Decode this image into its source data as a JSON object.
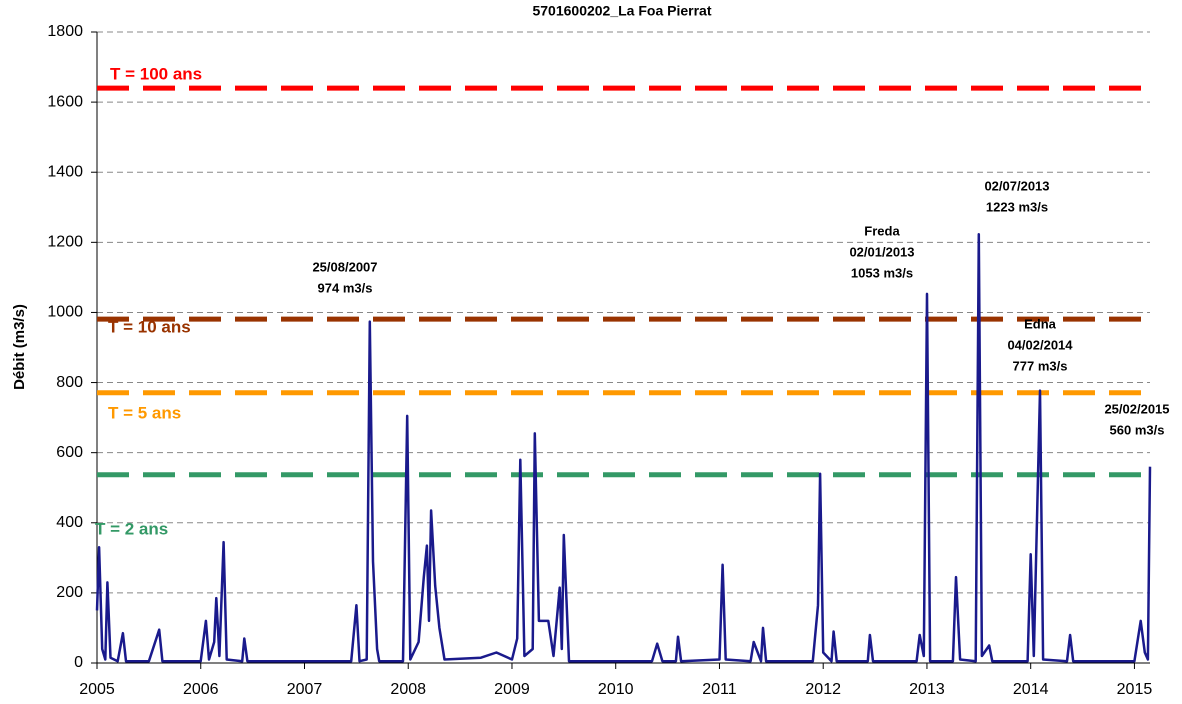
{
  "chart_data": {
    "type": "line",
    "title": "5701600202_La Foa Pierrat",
    "y_label": "Débit (m3/s)",
    "color": "#1a1a8c",
    "x": [
      2005.0,
      2005.02,
      2005.05,
      2005.08,
      2005.1,
      2005.13,
      2005.2,
      2005.25,
      2005.28,
      2005.5,
      2005.6,
      2005.63,
      2006.0,
      2006.05,
      2006.08,
      2006.13,
      2006.15,
      2006.18,
      2006.22,
      2006.25,
      2006.4,
      2006.42,
      2006.45,
      2007.45,
      2007.5,
      2007.53,
      2007.6,
      2007.63,
      2007.66,
      2007.7,
      2007.72,
      2007.95,
      2007.99,
      2008.02,
      2008.1,
      2008.15,
      2008.18,
      2008.2,
      2008.22,
      2008.26,
      2008.3,
      2008.35,
      2008.7,
      2008.85,
      2009.0,
      2009.05,
      2009.08,
      2009.12,
      2009.2,
      2009.22,
      2009.26,
      2009.35,
      2009.4,
      2009.46,
      2009.48,
      2009.5,
      2009.55,
      2010.35,
      2010.4,
      2010.45,
      2010.58,
      2010.6,
      2010.63,
      2011.0,
      2011.03,
      2011.06,
      2011.3,
      2011.33,
      2011.4,
      2011.42,
      2011.45,
      2011.9,
      2011.95,
      2011.97,
      2012.0,
      2012.08,
      2012.1,
      2012.13,
      2012.43,
      2012.45,
      2012.48,
      2012.9,
      2012.93,
      2012.97,
      2013.0,
      2013.03,
      2013.25,
      2013.28,
      2013.32,
      2013.47,
      2013.5,
      2013.53,
      2013.6,
      2013.63,
      2013.97,
      2014.0,
      2014.03,
      2014.09,
      2014.12,
      2014.35,
      2014.38,
      2014.41,
      2015.0,
      2015.06,
      2015.1,
      2015.13,
      2015.15
    ],
    "values": [
      150,
      330,
      40,
      10,
      230,
      15,
      5,
      85,
      5,
      5,
      95,
      5,
      5,
      120,
      10,
      60,
      185,
      20,
      345,
      10,
      5,
      70,
      5,
      5,
      165,
      5,
      10,
      974,
      290,
      40,
      5,
      5,
      705,
      10,
      60,
      245,
      335,
      120,
      435,
      220,
      100,
      10,
      15,
      30,
      10,
      70,
      580,
      20,
      40,
      655,
      120,
      120,
      20,
      215,
      40,
      365,
      5,
      5,
      55,
      5,
      5,
      75,
      5,
      10,
      280,
      10,
      5,
      60,
      5,
      100,
      5,
      5,
      165,
      540,
      30,
      5,
      90,
      5,
      5,
      80,
      5,
      5,
      80,
      20,
      1053,
      5,
      5,
      245,
      10,
      5,
      1223,
      20,
      50,
      5,
      5,
      310,
      20,
      777,
      10,
      5,
      80,
      5,
      5,
      120,
      30,
      10,
      560
    ],
    "xlim": [
      2005,
      2015.15
    ],
    "xticks": [
      2005,
      2006,
      2007,
      2008,
      2009,
      2010,
      2011,
      2012,
      2013,
      2014,
      2015
    ],
    "ylim": [
      0,
      1800
    ],
    "yticks": [
      0,
      200,
      400,
      600,
      800,
      1000,
      1200,
      1400,
      1600,
      1800
    ],
    "grid": true,
    "thresholds": [
      {
        "label": "T = 100 ans",
        "value": 1640,
        "color": "#ff0000"
      },
      {
        "label": "T = 10 ans",
        "value": 981,
        "color": "#993300"
      },
      {
        "label": "T = 5 ans",
        "value": 771,
        "color": "#ff9900"
      },
      {
        "label": "T = 2 ans",
        "value": 537,
        "color": "#339966"
      }
    ],
    "annotations": [
      [
        "25/08/2007",
        "974 m3/s"
      ],
      [
        "Freda",
        "02/01/2013",
        "1053 m3/s"
      ],
      [
        "02/07/2013",
        "1223 m3/s"
      ],
      [
        "Edna",
        "04/02/2014",
        "777 m3/s"
      ],
      [
        "25/02/2015",
        "560 m3/s"
      ]
    ]
  }
}
